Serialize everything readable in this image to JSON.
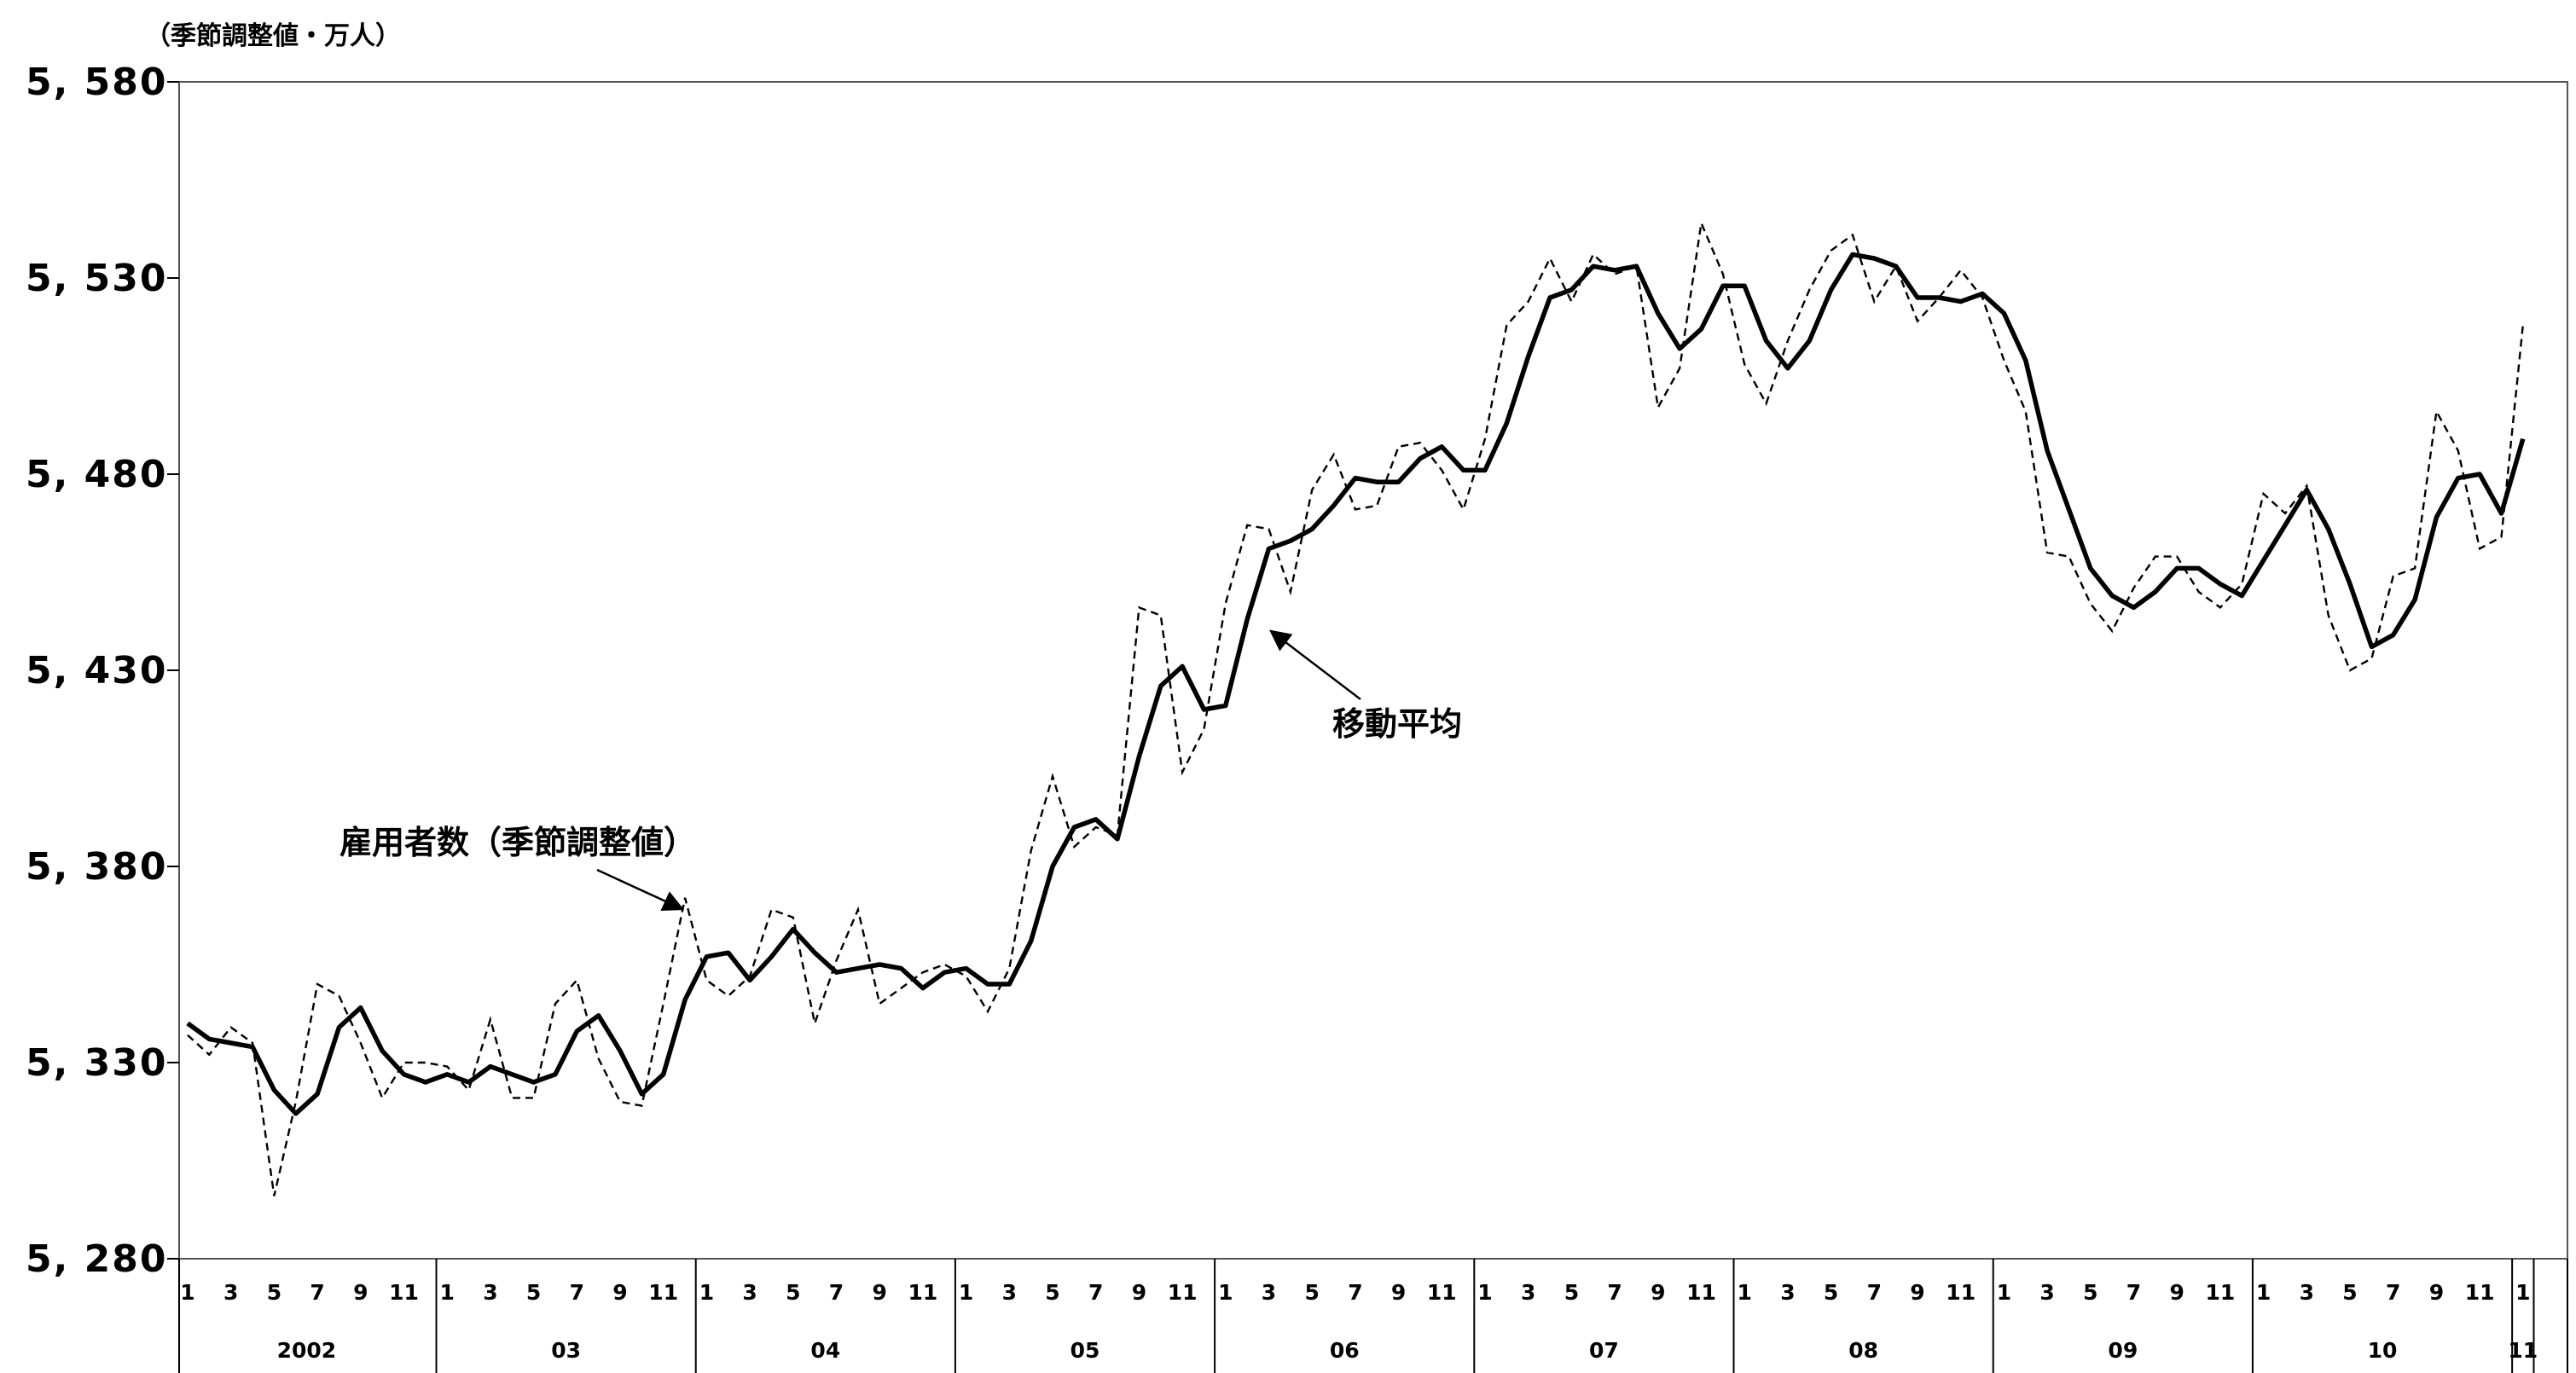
{
  "chart_data": {
    "type": "line",
    "ylabel": "（季節調整値・万人）",
    "ylim": [
      5280,
      5580
    ],
    "yticks": [
      5280,
      5330,
      5380,
      5430,
      5480,
      5530,
      5580
    ],
    "ytick_labels": [
      "5, 280",
      "5, 330",
      "5, 380",
      "5, 430",
      "5, 480",
      "5, 530",
      "5, 580"
    ],
    "month_tick_labels": [
      "1",
      "3",
      "5",
      "7",
      "9",
      "11"
    ],
    "year_groups": [
      {
        "label": "2002",
        "months": 12
      },
      {
        "label": "03",
        "months": 12
      },
      {
        "label": "04",
        "months": 12
      },
      {
        "label": "05",
        "months": 12
      },
      {
        "label": "06",
        "months": 12
      },
      {
        "label": "07",
        "months": 12
      },
      {
        "label": "08",
        "months": 12
      },
      {
        "label": "09",
        "months": 12
      },
      {
        "label": "10",
        "months": 12
      },
      {
        "label": "11",
        "months": 1
      }
    ],
    "grid": false,
    "series": [
      {
        "name": "雇用者数（季節調整値）",
        "style": "dashed-thin",
        "color": "#000000",
        "values": [
          5337,
          5332,
          5339,
          5335,
          5296,
          5320,
          5350,
          5347,
          5335,
          5321,
          5330,
          5330,
          5329,
          5323,
          5341,
          5321,
          5321,
          5345,
          5351,
          5331,
          5320,
          5319,
          5345,
          5372,
          5351,
          5347,
          5352,
          5369,
          5367,
          5340,
          5356,
          5369,
          5345,
          5349,
          5353,
          5355,
          5352,
          5343,
          5354,
          5384,
          5403,
          5385,
          5390,
          5388,
          5446,
          5444,
          5404,
          5415,
          5447,
          5467,
          5466,
          5450,
          5476,
          5485,
          5471,
          5472,
          5487,
          5488,
          5481,
          5471,
          5489,
          5518,
          5524,
          5535,
          5524,
          5536,
          5531,
          5533,
          5497,
          5507,
          5544,
          5531,
          5508,
          5498,
          5514,
          5527,
          5537,
          5541,
          5524,
          5533,
          5519,
          5525,
          5532,
          5525,
          5509,
          5496,
          5460,
          5459,
          5447,
          5440,
          5451,
          5459,
          5459,
          5450,
          5446,
          5452,
          5475,
          5470,
          5477,
          5444,
          5430,
          5433,
          5454,
          5456,
          5496,
          5486,
          5461,
          5464,
          5518
        ]
      },
      {
        "name": "移動平均",
        "style": "solid-thick",
        "color": "#000000",
        "values": [
          5340,
          5336,
          5335,
          5334,
          5323,
          5317,
          5322,
          5339,
          5344,
          5333,
          5327,
          5325,
          5327,
          5325,
          5329,
          5327,
          5325,
          5327,
          5338,
          5342,
          5333,
          5322,
          5327,
          5346,
          5357,
          5358,
          5351,
          5357,
          5364,
          5358,
          5353,
          5354,
          5355,
          5354,
          5349,
          5353,
          5354,
          5350,
          5350,
          5361,
          5380,
          5390,
          5392,
          5387,
          5408,
          5426,
          5431,
          5420,
          5421,
          5443,
          5461,
          5463,
          5466,
          5472,
          5479,
          5478,
          5478,
          5484,
          5487,
          5481,
          5481,
          5493,
          5510,
          5525,
          5527,
          5533,
          5532,
          5533,
          5521,
          5512,
          5517,
          5528,
          5528,
          5514,
          5507,
          5514,
          5527,
          5536,
          5535,
          5533,
          5525,
          5525,
          5524,
          5526,
          5521,
          5509,
          5486,
          5471,
          5456,
          5449,
          5446,
          5450,
          5456,
          5456,
          5452,
          5449,
          5458,
          5467,
          5476,
          5466,
          5452,
          5436,
          5439,
          5448,
          5469,
          5479,
          5480,
          5470,
          5489
        ]
      }
    ],
    "annotations": [
      {
        "text": "雇用者数（季節調整値）",
        "target_series": 0
      },
      {
        "text": "移動平均",
        "target_series": 1
      }
    ]
  }
}
